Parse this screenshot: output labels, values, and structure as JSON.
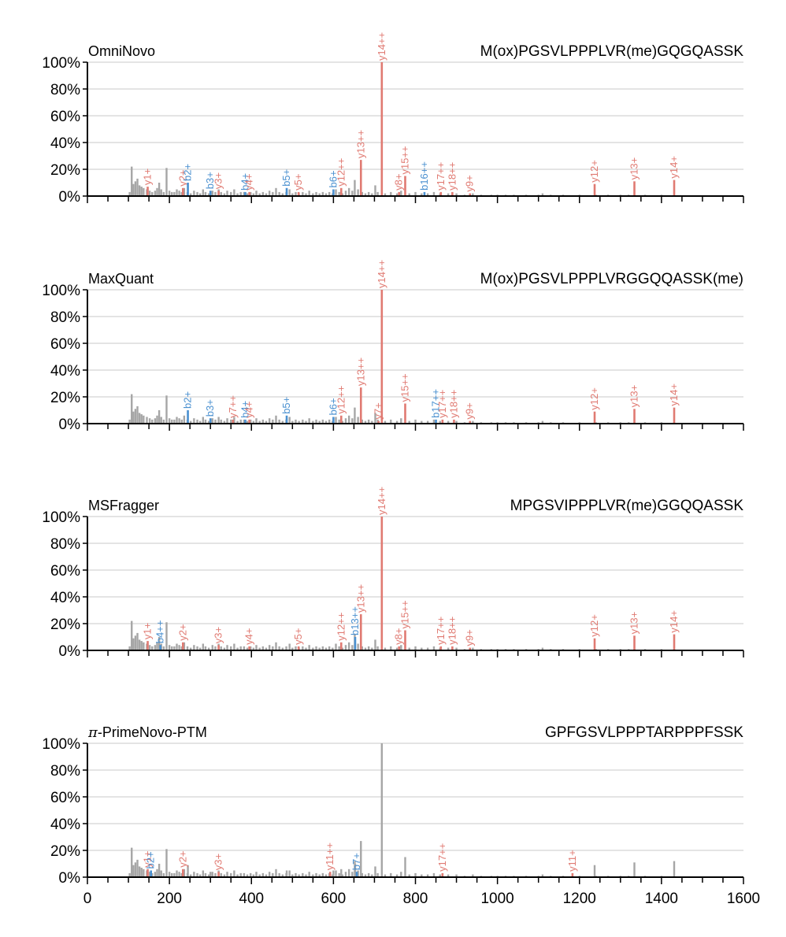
{
  "colors": {
    "matched_y": "#e07a72",
    "matched_b": "#4a90d0",
    "unmatched": "#a6a6a6",
    "axis": "#000000",
    "grid": "#d4d4d4"
  },
  "x_axis": {
    "xlim": [
      0,
      1600
    ],
    "tick_labels": [
      "0",
      "200",
      "400",
      "600",
      "800",
      "1000",
      "1200",
      "1400",
      "1600"
    ],
    "tick_values": [
      0,
      200,
      400,
      600,
      800,
      1000,
      1200,
      1400,
      1600
    ],
    "minor_tick_step": 50
  },
  "y_axis": {
    "ylim": [
      0,
      100
    ],
    "tick_labels": [
      "0%",
      "20%",
      "40%",
      "60%",
      "80%",
      "100%"
    ],
    "tick_values": [
      0,
      20,
      40,
      60,
      80,
      100
    ]
  },
  "background_peaks": [
    [
      103,
      3
    ],
    [
      108,
      22
    ],
    [
      112,
      9
    ],
    [
      117,
      11
    ],
    [
      122,
      13
    ],
    [
      127,
      8
    ],
    [
      132,
      7
    ],
    [
      137,
      6
    ],
    [
      145,
      5
    ],
    [
      152,
      4
    ],
    [
      158,
      3
    ],
    [
      165,
      4
    ],
    [
      170,
      6
    ],
    [
      175,
      10
    ],
    [
      180,
      5
    ],
    [
      186,
      3
    ],
    [
      193,
      21
    ],
    [
      200,
      4
    ],
    [
      206,
      3
    ],
    [
      212,
      3
    ],
    [
      218,
      5
    ],
    [
      224,
      4
    ],
    [
      230,
      3
    ],
    [
      236,
      6
    ],
    [
      244,
      3
    ],
    [
      252,
      2
    ],
    [
      260,
      4
    ],
    [
      268,
      3
    ],
    [
      275,
      2
    ],
    [
      282,
      5
    ],
    [
      288,
      3
    ],
    [
      296,
      2
    ],
    [
      305,
      4
    ],
    [
      312,
      3
    ],
    [
      320,
      5
    ],
    [
      326,
      3
    ],
    [
      334,
      2
    ],
    [
      341,
      4
    ],
    [
      350,
      3
    ],
    [
      358,
      5
    ],
    [
      366,
      2
    ],
    [
      374,
      3
    ],
    [
      382,
      3
    ],
    [
      390,
      2
    ],
    [
      398,
      3
    ],
    [
      405,
      2
    ],
    [
      412,
      4
    ],
    [
      420,
      2
    ],
    [
      428,
      3
    ],
    [
      436,
      2
    ],
    [
      444,
      4
    ],
    [
      452,
      3
    ],
    [
      460,
      6
    ],
    [
      468,
      3
    ],
    [
      476,
      2
    ],
    [
      485,
      3
    ],
    [
      493,
      5
    ],
    [
      500,
      2
    ],
    [
      508,
      3
    ],
    [
      516,
      2
    ],
    [
      525,
      3
    ],
    [
      533,
      2
    ],
    [
      541,
      4
    ],
    [
      550,
      2
    ],
    [
      558,
      3
    ],
    [
      566,
      2
    ],
    [
      574,
      3
    ],
    [
      582,
      2
    ],
    [
      590,
      3
    ],
    [
      598,
      2
    ],
    [
      606,
      5
    ],
    [
      614,
      3
    ],
    [
      622,
      2
    ],
    [
      630,
      4
    ],
    [
      638,
      6
    ],
    [
      646,
      4
    ],
    [
      652,
      12
    ],
    [
      660,
      5
    ],
    [
      670,
      3
    ],
    [
      678,
      2
    ],
    [
      686,
      3
    ],
    [
      694,
      2
    ],
    [
      702,
      8
    ],
    [
      708,
      3
    ],
    [
      726,
      2
    ],
    [
      740,
      3
    ],
    [
      755,
      2
    ],
    [
      765,
      4
    ],
    [
      785,
      2
    ],
    [
      800,
      3
    ],
    [
      815,
      2
    ],
    [
      830,
      2
    ],
    [
      845,
      3
    ],
    [
      860,
      2
    ],
    [
      880,
      2
    ],
    [
      900,
      2
    ],
    [
      920,
      1
    ],
    [
      940,
      2
    ],
    [
      960,
      1
    ],
    [
      985,
      1
    ],
    [
      1000,
      1
    ],
    [
      1020,
      1
    ],
    [
      1040,
      1
    ],
    [
      1070,
      1
    ],
    [
      1100,
      1
    ],
    [
      1110,
      2
    ],
    [
      1130,
      1
    ],
    [
      1160,
      1
    ],
    [
      1200,
      1
    ],
    [
      1240,
      1
    ],
    [
      1270,
      1
    ],
    [
      1300,
      1
    ],
    [
      1320,
      1
    ],
    [
      1360,
      1
    ],
    [
      1400,
      1
    ]
  ],
  "chart_data": [
    {
      "type": "bar",
      "tool": "OmniNovo",
      "peptide": "M(ox)PGSVLPPPLVR(me)GQGQASSK",
      "xlim": [
        0,
        1600
      ],
      "ylim": [
        0,
        100
      ],
      "matched_peaks": [
        {
          "label": "y1+",
          "mz": 147,
          "intensity": 7,
          "ion": "y"
        },
        {
          "label": "y2+",
          "mz": 233,
          "intensity": 6,
          "ion": "y"
        },
        {
          "label": "b2+",
          "mz": 245,
          "intensity": 10,
          "ion": "b"
        },
        {
          "label": "b3+",
          "mz": 300,
          "intensity": 4,
          "ion": "b"
        },
        {
          "label": "y3+",
          "mz": 320,
          "intensity": 4,
          "ion": "y"
        },
        {
          "label": "b4+",
          "mz": 385,
          "intensity": 3,
          "ion": "b"
        },
        {
          "label": "y4+",
          "mz": 395,
          "intensity": 3,
          "ion": "y"
        },
        {
          "label": "b5+",
          "mz": 486,
          "intensity": 6,
          "ion": "b"
        },
        {
          "label": "y5+",
          "mz": 515,
          "intensity": 3,
          "ion": "y"
        },
        {
          "label": "b6+",
          "mz": 600,
          "intensity": 5,
          "ion": "b"
        },
        {
          "label": "y12++",
          "mz": 619,
          "intensity": 6,
          "ion": "y"
        },
        {
          "label": "y13++",
          "mz": 667,
          "intensity": 27,
          "ion": "y"
        },
        {
          "label": "y14++",
          "mz": 718,
          "intensity": 100,
          "ion": "y"
        },
        {
          "label": "y8+",
          "mz": 760,
          "intensity": 3,
          "ion": "y"
        },
        {
          "label": "y15++",
          "mz": 775,
          "intensity": 15,
          "ion": "y"
        },
        {
          "label": "b16++",
          "mz": 822,
          "intensity": 3,
          "ion": "b"
        },
        {
          "label": "y17++",
          "mz": 862,
          "intensity": 3,
          "ion": "y"
        },
        {
          "label": "y18++",
          "mz": 890,
          "intensity": 3,
          "ion": "y"
        },
        {
          "label": "y9+",
          "mz": 933,
          "intensity": 2,
          "ion": "y"
        },
        {
          "label": "y12+",
          "mz": 1237,
          "intensity": 9,
          "ion": "y"
        },
        {
          "label": "y13+",
          "mz": 1334,
          "intensity": 11,
          "ion": "y"
        },
        {
          "label": "y14+",
          "mz": 1431,
          "intensity": 12,
          "ion": "y"
        }
      ]
    },
    {
      "type": "bar",
      "tool": "MaxQuant",
      "peptide": "M(ox)PGSVLPPPLVRGGQQASSK(me)",
      "xlim": [
        0,
        1600
      ],
      "ylim": [
        0,
        100
      ],
      "matched_peaks": [
        {
          "label": "b2+",
          "mz": 245,
          "intensity": 10,
          "ion": "b"
        },
        {
          "label": "b3+",
          "mz": 300,
          "intensity": 4,
          "ion": "b"
        },
        {
          "label": "y7++",
          "mz": 355,
          "intensity": 3,
          "ion": "y"
        },
        {
          "label": "b4+",
          "mz": 385,
          "intensity": 3,
          "ion": "b"
        },
        {
          "label": "y4+",
          "mz": 395,
          "intensity": 3,
          "ion": "y"
        },
        {
          "label": "b5+",
          "mz": 486,
          "intensity": 6,
          "ion": "b"
        },
        {
          "label": "b6+",
          "mz": 600,
          "intensity": 5,
          "ion": "b"
        },
        {
          "label": "y12++",
          "mz": 619,
          "intensity": 6,
          "ion": "y"
        },
        {
          "label": "y13++",
          "mz": 667,
          "intensity": 27,
          "ion": "y"
        },
        {
          "label": "y14++",
          "mz": 718,
          "intensity": 100,
          "ion": "y"
        },
        {
          "label": "y7+",
          "mz": 710,
          "intensity": 2,
          "ion": "y"
        },
        {
          "label": "y15++",
          "mz": 775,
          "intensity": 15,
          "ion": "y"
        },
        {
          "label": "b17++",
          "mz": 850,
          "intensity": 3,
          "ion": "b"
        },
        {
          "label": "y17++",
          "mz": 866,
          "intensity": 3,
          "ion": "y"
        },
        {
          "label": "y18++",
          "mz": 894,
          "intensity": 3,
          "ion": "y"
        },
        {
          "label": "y9+",
          "mz": 933,
          "intensity": 2,
          "ion": "y"
        },
        {
          "label": "y12+",
          "mz": 1237,
          "intensity": 9,
          "ion": "y"
        },
        {
          "label": "y13+",
          "mz": 1334,
          "intensity": 11,
          "ion": "y"
        },
        {
          "label": "y14+",
          "mz": 1431,
          "intensity": 12,
          "ion": "y"
        }
      ]
    },
    {
      "type": "bar",
      "tool": "MSFragger",
      "peptide": "MPGSVIPPPLVR(me)GGQQASSK",
      "xlim": [
        0,
        1600
      ],
      "ylim": [
        0,
        100
      ],
      "matched_peaks": [
        {
          "label": "y1+",
          "mz": 147,
          "intensity": 7,
          "ion": "y"
        },
        {
          "label": "b4++",
          "mz": 178,
          "intensity": 4,
          "ion": "b"
        },
        {
          "label": "y2+",
          "mz": 233,
          "intensity": 6,
          "ion": "y"
        },
        {
          "label": "y3+",
          "mz": 320,
          "intensity": 4,
          "ion": "y"
        },
        {
          "label": "y4+",
          "mz": 395,
          "intensity": 3,
          "ion": "y"
        },
        {
          "label": "y5+",
          "mz": 515,
          "intensity": 3,
          "ion": "y"
        },
        {
          "label": "y12++",
          "mz": 619,
          "intensity": 6,
          "ion": "y"
        },
        {
          "label": "b13++",
          "mz": 653,
          "intensity": 10,
          "ion": "b"
        },
        {
          "label": "y13++",
          "mz": 667,
          "intensity": 27,
          "ion": "y"
        },
        {
          "label": "y14++",
          "mz": 718,
          "intensity": 100,
          "ion": "y"
        },
        {
          "label": "y8+",
          "mz": 760,
          "intensity": 3,
          "ion": "y"
        },
        {
          "label": "y15++",
          "mz": 775,
          "intensity": 15,
          "ion": "y"
        },
        {
          "label": "y17++",
          "mz": 862,
          "intensity": 3,
          "ion": "y"
        },
        {
          "label": "y18++",
          "mz": 890,
          "intensity": 3,
          "ion": "y"
        },
        {
          "label": "y9+",
          "mz": 933,
          "intensity": 2,
          "ion": "y"
        },
        {
          "label": "y12+",
          "mz": 1237,
          "intensity": 9,
          "ion": "y"
        },
        {
          "label": "y13+",
          "mz": 1334,
          "intensity": 11,
          "ion": "y"
        },
        {
          "label": "y14+",
          "mz": 1431,
          "intensity": 12,
          "ion": "y"
        }
      ]
    },
    {
      "type": "bar",
      "tool": "π-PrimeNovo-PTM",
      "tool_prefix": "π",
      "tool_suffix": "-PrimeNovo-PTM",
      "peptide": "GPFGSVLPPPTARPPPFSSK",
      "xlim": [
        0,
        1600
      ],
      "ylim": [
        0,
        100
      ],
      "extra_unmatched_peaks": [
        [
          667,
          27
        ],
        [
          718,
          100
        ],
        [
          775,
          15
        ],
        [
          1237,
          9
        ],
        [
          1334,
          11
        ],
        [
          1431,
          12
        ],
        [
          619,
          6
        ],
        [
          653,
          10
        ],
        [
          245,
          9
        ],
        [
          300,
          4
        ],
        [
          486,
          5
        ],
        [
          600,
          5
        ]
      ],
      "matched_peaks": [
        {
          "label": "y1+",
          "mz": 147,
          "intensity": 6,
          "ion": "y"
        },
        {
          "label": "b2+",
          "mz": 155,
          "intensity": 5,
          "ion": "b"
        },
        {
          "label": "y2+",
          "mz": 233,
          "intensity": 6,
          "ion": "y"
        },
        {
          "label": "y3+",
          "mz": 320,
          "intensity": 4,
          "ion": "y"
        },
        {
          "label": "y11++",
          "mz": 592,
          "intensity": 4,
          "ion": "y"
        },
        {
          "label": "b7+",
          "mz": 657,
          "intensity": 4,
          "ion": "b"
        },
        {
          "label": "y17++",
          "mz": 866,
          "intensity": 3,
          "ion": "y"
        },
        {
          "label": "y11+",
          "mz": 1183,
          "intensity": 3,
          "ion": "y"
        }
      ]
    }
  ]
}
